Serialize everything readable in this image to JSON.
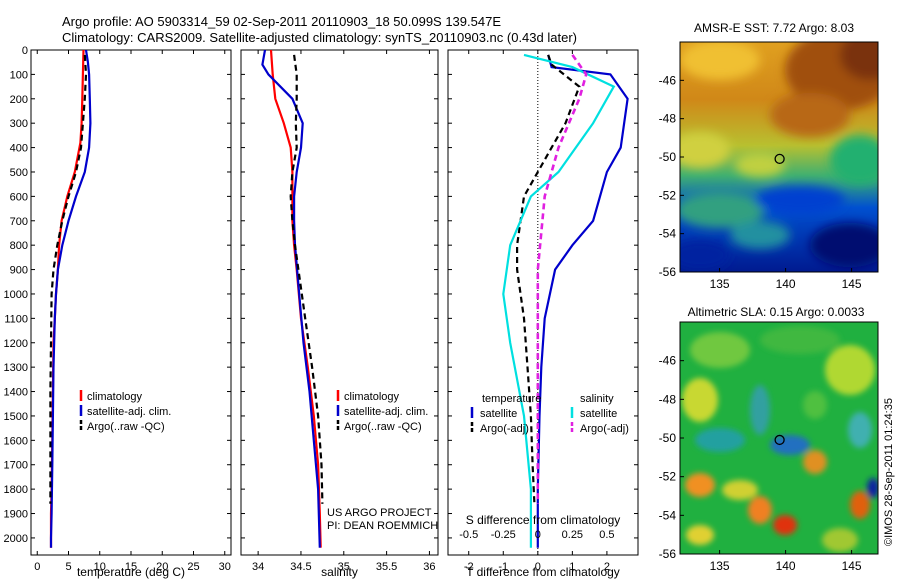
{
  "header": {
    "line1": "Argo profile: AO 5903314_59 02-Sep-2011 20110903_18 50.099S 139.547E",
    "line2": "Climatology: CARS2009. Satellite-adjusted climatology: synTS_20110903.nc (0.43d later)"
  },
  "credit": {
    "project": "US ARGO PROJECT",
    "pi": "PI: DEAN ROEMMICH",
    "stamp": "©IMOS 28-Sep-2011 01:24:35"
  },
  "colors": {
    "climatology": "#ff0000",
    "satellite": "#0000cc",
    "argo": "#000000",
    "sal_satellite": "#00e0e0",
    "sal_argo": "#e020e0"
  },
  "chart_data": [
    {
      "id": "temperature",
      "type": "line",
      "xlabel": "temperature (deg C)",
      "ylabel": "",
      "xlim": [
        -1,
        31
      ],
      "ylim": [
        2070,
        0
      ],
      "xticks": [
        "0",
        "5",
        "10",
        "15",
        "20",
        "25",
        "30"
      ],
      "xtick_values": [
        0,
        5,
        10,
        15,
        20,
        25,
        30
      ],
      "yticks": [
        "0",
        "100",
        "200",
        "300",
        "400",
        "500",
        "600",
        "700",
        "800",
        "900",
        "1000",
        "1100",
        "1200",
        "1300",
        "1400",
        "1500",
        "1600",
        "1700",
        "1800",
        "1900",
        "2000"
      ],
      "ytick_values": [
        0,
        100,
        200,
        300,
        400,
        500,
        600,
        700,
        800,
        900,
        1000,
        1100,
        1200,
        1300,
        1400,
        1500,
        1600,
        1700,
        1800,
        1900,
        2000
      ],
      "legend": [
        "climatology",
        "satellite-adj. clim.",
        "Argo(..raw -QC)"
      ],
      "series": [
        {
          "name": "climatology",
          "x": [
            7.4,
            7.3,
            7.2,
            7.1,
            6.9,
            6.0,
            4.8,
            3.9,
            3.5,
            3.3,
            3.0,
            2.8,
            2.6,
            2.5,
            2.4,
            2.3,
            2.2,
            2.2,
            2.2
          ],
          "y": [
            0,
            100,
            200,
            300,
            380,
            500,
            600,
            700,
            800,
            900,
            1000,
            1100,
            1200,
            1400,
            1600,
            1800,
            1900,
            2000,
            2040
          ]
        },
        {
          "name": "satellite-adj. clim.",
          "x": [
            7.8,
            8.1,
            8.3,
            8.4,
            8.5,
            8.3,
            7.6,
            6.2,
            5.0,
            4.0,
            3.3,
            3.0,
            2.8,
            2.6,
            2.5,
            2.4,
            2.3,
            2.2,
            2.2
          ],
          "y": [
            0,
            50,
            100,
            200,
            300,
            400,
            500,
            600,
            700,
            800,
            900,
            1000,
            1100,
            1300,
            1500,
            1700,
            1900,
            2000,
            2040
          ]
        },
        {
          "name": "Argo(..raw -QC)",
          "x": [
            7.6,
            7.8,
            7.6,
            7.3,
            7.0,
            6.2,
            5.0,
            4.0,
            3.2,
            2.6,
            2.3,
            2.2,
            2.1,
            2.1,
            2.1,
            2.1
          ],
          "y": [
            20,
            100,
            200,
            300,
            400,
            500,
            600,
            700,
            800,
            900,
            1000,
            1200,
            1400,
            1600,
            1800,
            1860
          ]
        }
      ]
    },
    {
      "id": "salinity",
      "type": "line",
      "xlabel": "salinity",
      "ylabel": "",
      "xlim": [
        33.8,
        36.1
      ],
      "ylim": [
        2070,
        0
      ],
      "xticks": [
        "34",
        "34.5",
        "35",
        "35.5",
        "36"
      ],
      "xtick_values": [
        34,
        34.5,
        35,
        35.5,
        36
      ],
      "legend": [
        "climatology",
        "satellite-adj. clim.",
        "Argo(..raw -QC)"
      ],
      "series": [
        {
          "name": "climatology",
          "x": [
            34.15,
            34.17,
            34.2,
            34.3,
            34.38,
            34.4,
            34.4,
            34.4,
            34.42,
            34.45,
            34.5,
            34.58,
            34.65,
            34.7,
            34.72,
            34.73
          ],
          "y": [
            0,
            100,
            200,
            300,
            400,
            500,
            600,
            700,
            800,
            900,
            1100,
            1300,
            1500,
            1700,
            1900,
            2040
          ]
        },
        {
          "name": "satellite-adj. clim.",
          "x": [
            34.08,
            34.05,
            34.12,
            34.4,
            34.52,
            34.5,
            34.45,
            34.42,
            34.42,
            34.43,
            34.48,
            34.53,
            34.6,
            34.65,
            34.7,
            34.72
          ],
          "y": [
            0,
            60,
            100,
            200,
            300,
            400,
            500,
            600,
            700,
            800,
            1000,
            1200,
            1400,
            1600,
            1800,
            2040
          ]
        },
        {
          "name": "Argo(..raw -QC)",
          "x": [
            34.42,
            34.45,
            34.45,
            34.44,
            34.45,
            34.4,
            34.38,
            34.4,
            34.43,
            34.47,
            34.55,
            34.63,
            34.7,
            34.74,
            34.75
          ],
          "y": [
            20,
            100,
            200,
            300,
            400,
            500,
            600,
            700,
            800,
            900,
            1100,
            1300,
            1500,
            1700,
            1860
          ]
        }
      ]
    },
    {
      "id": "difference",
      "type": "line",
      "xlabel": "T difference from climatology",
      "x2label": "S difference from climatology",
      "xlim": [
        -2.6,
        2.9
      ],
      "ylim": [
        2070,
        0
      ],
      "xticks": [
        "-2",
        "-1",
        "0",
        "1",
        "2"
      ],
      "xtick_values": [
        -2,
        -1,
        0,
        1,
        2
      ],
      "x2ticks": [
        "-0.5",
        "-0.25",
        "0",
        "0.25",
        "0.5"
      ],
      "x2tick_values": [
        -0.5,
        -0.25,
        0,
        0.25,
        0.5
      ],
      "legend_headers": [
        "temperature",
        "salinity"
      ],
      "legend": [
        "satellite",
        "Argo(-adj)",
        "satellite",
        "Argo(-adj)"
      ],
      "series": [
        {
          "name": "satellite",
          "group": "temperature",
          "x": [
            0.3,
            0.4,
            2.1,
            2.6,
            2.4,
            2.0,
            1.8,
            1.6,
            1.0,
            0.5,
            0.2,
            0.1,
            0.05,
            0.0,
            0.0
          ],
          "y": [
            20,
            70,
            100,
            200,
            400,
            500,
            600,
            700,
            800,
            900,
            1100,
            1300,
            1500,
            1800,
            2040
          ]
        },
        {
          "name": "Argo(-adj)",
          "group": "temperature",
          "x": [
            0.3,
            0.4,
            1.2,
            0.8,
            0.4,
            0.0,
            -0.4,
            -0.6,
            -0.6,
            -0.4,
            -0.3,
            -0.2,
            -0.15,
            -0.1
          ],
          "y": [
            20,
            60,
            150,
            300,
            400,
            500,
            600,
            800,
            900,
            1100,
            1300,
            1500,
            1700,
            1860
          ]
        },
        {
          "name": "satellite",
          "group": "salinity",
          "x": [
            -0.1,
            0.25,
            0.55,
            0.4,
            0.15,
            -0.05,
            -0.2,
            -0.25,
            -0.2,
            -0.1,
            -0.05,
            -0.05
          ],
          "y": [
            20,
            70,
            150,
            300,
            500,
            600,
            800,
            1000,
            1200,
            1500,
            1800,
            2040
          ]
        },
        {
          "name": "Argo(-adj)",
          "group": "salinity",
          "x": [
            0.25,
            0.35,
            0.3,
            0.15,
            0.05,
            0.0,
            0.0,
            0.0,
            0.0
          ],
          "y": [
            20,
            100,
            200,
            400,
            600,
            900,
            1200,
            1500,
            1860
          ]
        }
      ]
    },
    {
      "id": "sst-map",
      "type": "heatmap",
      "title": "AMSR-E SST: 7.72 Argo: 8.03",
      "xlim": [
        132,
        147
      ],
      "ylim": [
        -56,
        -44
      ],
      "xticks": [
        "135",
        "140",
        "145"
      ],
      "xtick_values": [
        135,
        140,
        145
      ],
      "yticks": [
        "-46",
        "-48",
        "-50",
        "-52",
        "-54",
        "-56"
      ],
      "ytick_values": [
        -46,
        -48,
        -50,
        -52,
        -54,
        -56
      ],
      "marker": {
        "lon": 139.547,
        "lat": -50.099
      }
    },
    {
      "id": "sla-map",
      "type": "heatmap",
      "title": "Altimetric SLA: 0.15 Argo: 0.0033",
      "xlim": [
        132,
        147
      ],
      "ylim": [
        -56,
        -44
      ],
      "xticks": [
        "135",
        "140",
        "145"
      ],
      "xtick_values": [
        135,
        140,
        145
      ],
      "yticks": [
        "-46",
        "-48",
        "-50",
        "-52",
        "-54",
        "-56"
      ],
      "ytick_values": [
        -46,
        -48,
        -50,
        -52,
        -54,
        -56
      ],
      "marker": {
        "lon": 139.547,
        "lat": -50.099
      }
    }
  ]
}
